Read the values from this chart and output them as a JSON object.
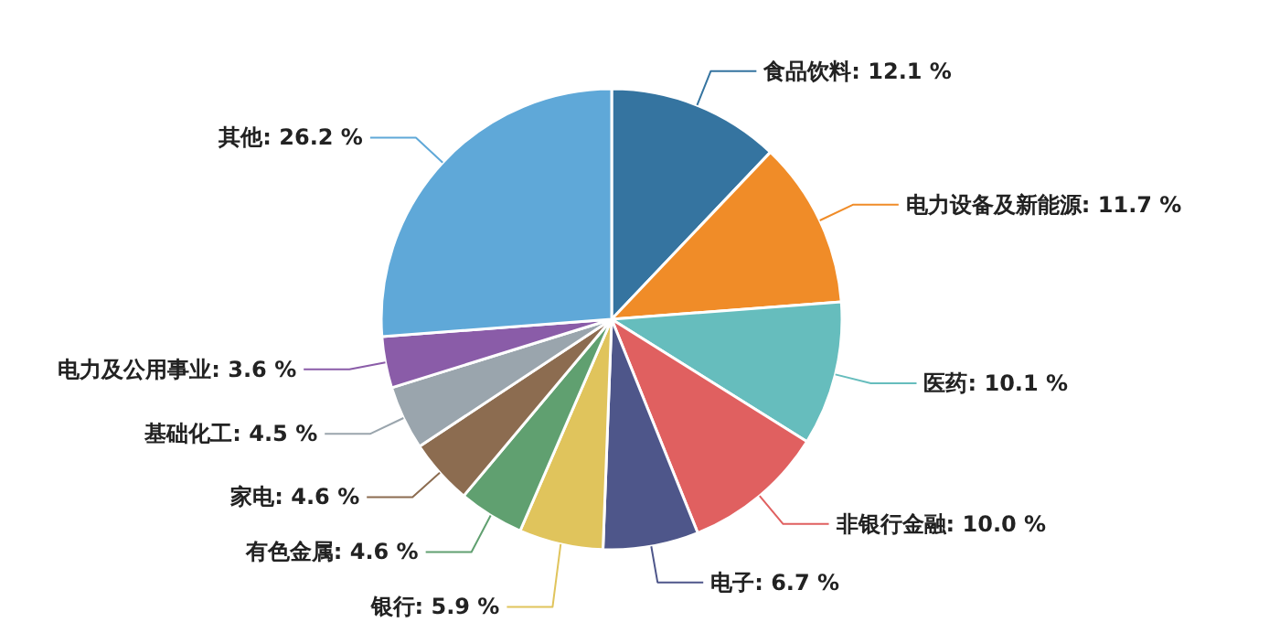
{
  "chart_data": {
    "type": "pie",
    "categories": [
      "食品饮料",
      "电力设备及新能源",
      "医药",
      "非银行金融",
      "电子",
      "银行",
      "有色金属",
      "家电",
      "基础化工",
      "电力及公用事业",
      "其他"
    ],
    "values": [
      12.1,
      11.7,
      10.1,
      10.0,
      6.7,
      5.9,
      4.6,
      4.6,
      4.5,
      3.6,
      26.2
    ],
    "colors": [
      "#3574a0",
      "#f08c28",
      "#66bdbd",
      "#e06060",
      "#4e568a",
      "#e0c45c",
      "#60a070",
      "#8c6c50",
      "#9aa5ad",
      "#8a5ca8",
      "#5fa8d8"
    ],
    "value_labels": [
      "12.1 %",
      "11.7 %",
      "10.1 %",
      "10.0 %",
      "6.7 %",
      "5.9 %",
      "4.6 %",
      "4.6 %",
      "4.5 %",
      "3.6 %",
      "26.2 %"
    ],
    "legend": false
  }
}
